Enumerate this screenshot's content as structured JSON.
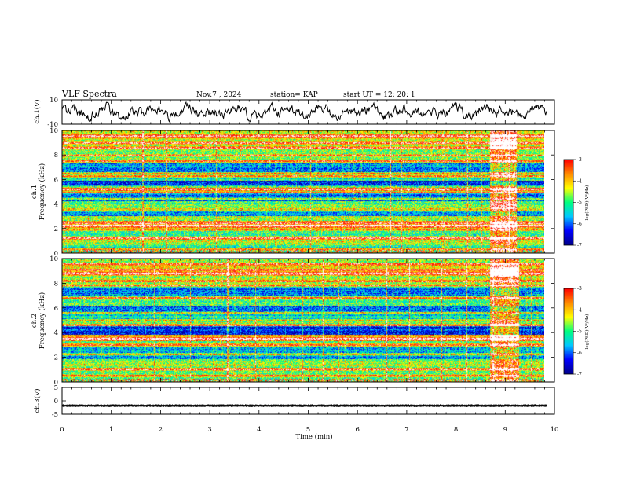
{
  "header": {
    "title": "VLF Spectra",
    "date": "Nov.7 , 2024",
    "station": "station= KAP",
    "start": "start UT = 12: 20: 1"
  },
  "chart_data": [
    {
      "type": "line",
      "panel": "ch1-waveform",
      "ylabel": "ch.1(V)",
      "ylim": [
        -10,
        10
      ],
      "yticks": [
        "10",
        "-10"
      ],
      "xlim": [
        0,
        10
      ],
      "description_values": "amplitude roughly between -7 and 7 V over 0-9.85 min"
    },
    {
      "type": "heatmap",
      "panel": "ch1-spectrogram",
      "ylabel_line1": "ch.1",
      "ylabel_line2": "Frequency (kHz)",
      "ylim": [
        0,
        10
      ],
      "yticks": [
        "0",
        "2",
        "4",
        "6",
        "8",
        "10"
      ],
      "xlim": [
        0,
        10
      ],
      "colorbar": {
        "label": "log(PSD)(V²/Hz)",
        "range": [
          -7,
          -3
        ],
        "ticks": [
          "-3",
          "-4",
          "-5",
          "-6",
          "-7"
        ],
        "colors": [
          "#00008b",
          "#0000ff",
          "#00c8ff",
          "#00ff7f",
          "#ffff00",
          "#ff8c00",
          "#ff0000",
          "#ffffff"
        ]
      },
      "bands_khz": [
        {
          "from": 0.0,
          "to": 0.6,
          "level": -5.5
        },
        {
          "from": 0.6,
          "to": 1.4,
          "level": -4.8
        },
        {
          "from": 1.4,
          "to": 2.0,
          "level": -5.3
        },
        {
          "from": 2.0,
          "to": 2.4,
          "level": -4.2
        },
        {
          "from": 2.4,
          "to": 3.0,
          "level": -5.0
        },
        {
          "from": 3.0,
          "to": 3.6,
          "level": -5.9
        },
        {
          "from": 3.6,
          "to": 4.2,
          "level": -5.2
        },
        {
          "from": 4.2,
          "to": 4.9,
          "level": -6.2
        },
        {
          "from": 4.9,
          "to": 5.3,
          "level": -4.6
        },
        {
          "from": 5.3,
          "to": 5.9,
          "level": -6.5
        },
        {
          "from": 5.9,
          "to": 6.6,
          "level": -5.4
        },
        {
          "from": 6.6,
          "to": 7.3,
          "level": -6.0
        },
        {
          "from": 7.3,
          "to": 8.2,
          "level": -5.1
        },
        {
          "from": 8.2,
          "to": 9.2,
          "level": -4.9
        },
        {
          "from": 9.2,
          "to": 10.0,
          "level": -4.6
        }
      ],
      "lines_khz": [
        0.3,
        1.2,
        1.9,
        2.2,
        2.5,
        3.5,
        4.4,
        4.9,
        5.2,
        5.4,
        6.3,
        6.5,
        7.5,
        8.0,
        8.6,
        9.0,
        9.6
      ],
      "burst_time_min": [
        8.75,
        9.3
      ]
    },
    {
      "type": "heatmap",
      "panel": "ch2-spectrogram",
      "ylabel_line1": "ch.2",
      "ylabel_line2": "Frequency (kHz)",
      "ylim": [
        0,
        10
      ],
      "yticks": [
        "0",
        "2",
        "4",
        "6",
        "8",
        "10"
      ],
      "xlim": [
        0,
        10
      ],
      "colorbar": {
        "label": "log(PSD)(V²/Hz)",
        "range": [
          -7,
          -3
        ],
        "ticks": [
          "-3",
          "-4",
          "-5",
          "-6",
          "-7"
        ],
        "colors": [
          "#00008b",
          "#0000ff",
          "#00c8ff",
          "#00ff7f",
          "#ffff00",
          "#ff8c00",
          "#ff0000",
          "#ffffff"
        ]
      },
      "bands_khz": [
        {
          "from": 0.0,
          "to": 0.8,
          "level": -5.3
        },
        {
          "from": 0.8,
          "to": 1.8,
          "level": -5.0
        },
        {
          "from": 1.8,
          "to": 2.8,
          "level": -5.9
        },
        {
          "from": 2.8,
          "to": 3.3,
          "level": -5.2
        },
        {
          "from": 3.3,
          "to": 3.8,
          "level": -4.3
        },
        {
          "from": 3.8,
          "to": 4.5,
          "level": -6.4
        },
        {
          "from": 4.5,
          "to": 4.9,
          "level": -5.0
        },
        {
          "from": 4.9,
          "to": 5.5,
          "level": -5.6
        },
        {
          "from": 5.5,
          "to": 6.2,
          "level": -6.2
        },
        {
          "from": 6.2,
          "to": 7.0,
          "level": -5.3
        },
        {
          "from": 7.0,
          "to": 7.8,
          "level": -6.1
        },
        {
          "from": 7.8,
          "to": 8.6,
          "level": -5.0
        },
        {
          "from": 8.6,
          "to": 9.4,
          "level": -4.4
        },
        {
          "from": 9.4,
          "to": 10.0,
          "level": -4.9
        }
      ],
      "lines_khz": [
        0.5,
        1.0,
        2.2,
        3.0,
        3.5,
        4.6,
        5.0,
        5.6,
        6.8,
        7.8,
        8.2,
        8.8,
        9.1,
        9.6
      ],
      "burst_time_min": [
        8.75,
        9.35
      ]
    },
    {
      "type": "line",
      "panel": "ch3-waveform",
      "ylabel": "ch.3(V)",
      "ylim": [
        -5,
        5
      ],
      "yticks": [
        "5",
        "0",
        "-5"
      ],
      "xlim": [
        0,
        10
      ],
      "xlabel": "Time (min)",
      "xticks": [
        "0",
        "1",
        "2",
        "3",
        "4",
        "5",
        "6",
        "7",
        "8",
        "9",
        "10"
      ],
      "baseline_value": -1.8,
      "noise_amplitude": 0.5
    }
  ]
}
